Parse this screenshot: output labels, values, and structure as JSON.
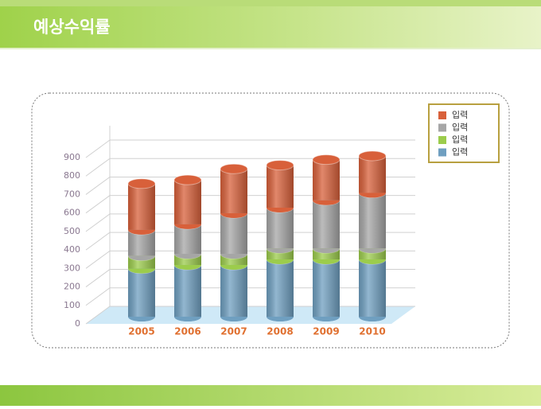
{
  "header": {
    "title": "예상수익률"
  },
  "chart_data": {
    "type": "stacked-cylinder",
    "categories": [
      "2005",
      "2006",
      "2007",
      "2008",
      "2009",
      "2010"
    ],
    "series": [
      {
        "name": "입력",
        "color": "#6f9fc0",
        "values": [
          260,
          280,
          280,
          310,
          310,
          310
        ]
      },
      {
        "name": "입력",
        "color": "#9ccc4c",
        "values": [
          70,
          60,
          60,
          60,
          60,
          60
        ]
      },
      {
        "name": "입력",
        "color": "#a6a6a6",
        "values": [
          140,
          160,
          220,
          220,
          260,
          300
        ]
      },
      {
        "name": "입력",
        "color": "#d8603a",
        "values": [
          250,
          240,
          240,
          230,
          220,
          200
        ]
      }
    ],
    "ylim": [
      0,
      900
    ],
    "yticks": [
      0,
      100,
      200,
      300,
      400,
      500,
      600,
      700,
      800,
      900
    ],
    "grid": true
  }
}
